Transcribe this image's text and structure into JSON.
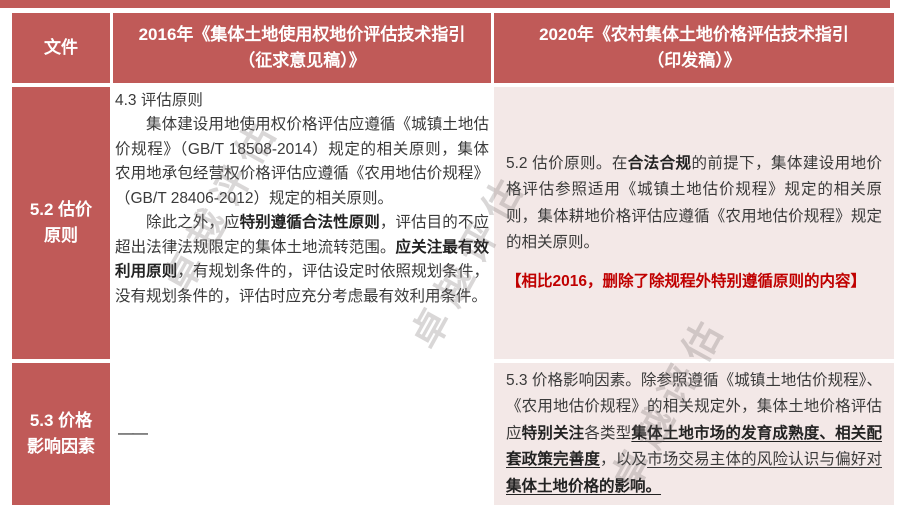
{
  "colors": {
    "header_red": "#c05a58",
    "cell_pink": "#f3e8e7",
    "note_red": "#c00000",
    "body_text": "#3a3a3a"
  },
  "watermark": {
    "text": "卓越评估"
  },
  "table": {
    "header": {
      "file": "文件",
      "y2016": "2016年《集体土地使用权地价评估技术指引\n（征求意见稿）》",
      "y2020": "2020年《农村集体土地价格评估技术指引\n（印发稿）》"
    },
    "r1": {
      "label": "5.2 估价\n原则",
      "c2016": {
        "title": "4.3 评估原则",
        "p1": "集体建设用地使用权价格评估应遵循《城镇土地估价规程》（GB/T 18508-2014）规定的相关原则，集体农用地承包经营权价格评估应遵循《农用地估价规程》（GB/T 28406-2012）规定的相关原则。",
        "p2_a": "除此之外，应",
        "p2_b": "特别遵循合法性原则",
        "p2_c": "，评估目的不应超出法律法规限定的集体土地流转范围。",
        "p2_d": "应关注最有效利用原则",
        "p2_e": "，有规划条件的，评估设定时依照规划条件，没有规划条件的，评估时应充分考虑最有效利用条件。"
      },
      "c2020": {
        "p1_a": "5.2 估价原则。在",
        "p1_b": "合法合规",
        "p1_c": "的前提下，集体建设用地价格评估参照适用《城镇土地估价规程》规定的相关原则，集体耕地价格评估应遵循《农用地估价规程》规定的相关原则。",
        "note": "【相比2016，删除了除规程外特别遵循原则的内容】"
      }
    },
    "r2": {
      "label": "5.3 价格\n影响因素",
      "c2016": {
        "dash": "——"
      },
      "c2020": {
        "p1_a": "5.3 价格影响因素。除参照遵循《城镇土地估价规程》、《农用地估价规程》的相关规定外，集体土地价格评估应",
        "p1_b": "特别关注",
        "p1_c": "各类型",
        "p1_d": "集体土地市场的发育成熟度、相关配套政策完善度",
        "p1_e": "，以及",
        "p1_f": "市场交易主体的风险认识与偏好对",
        "p1_g": "集体土地价格的影响。"
      }
    }
  }
}
